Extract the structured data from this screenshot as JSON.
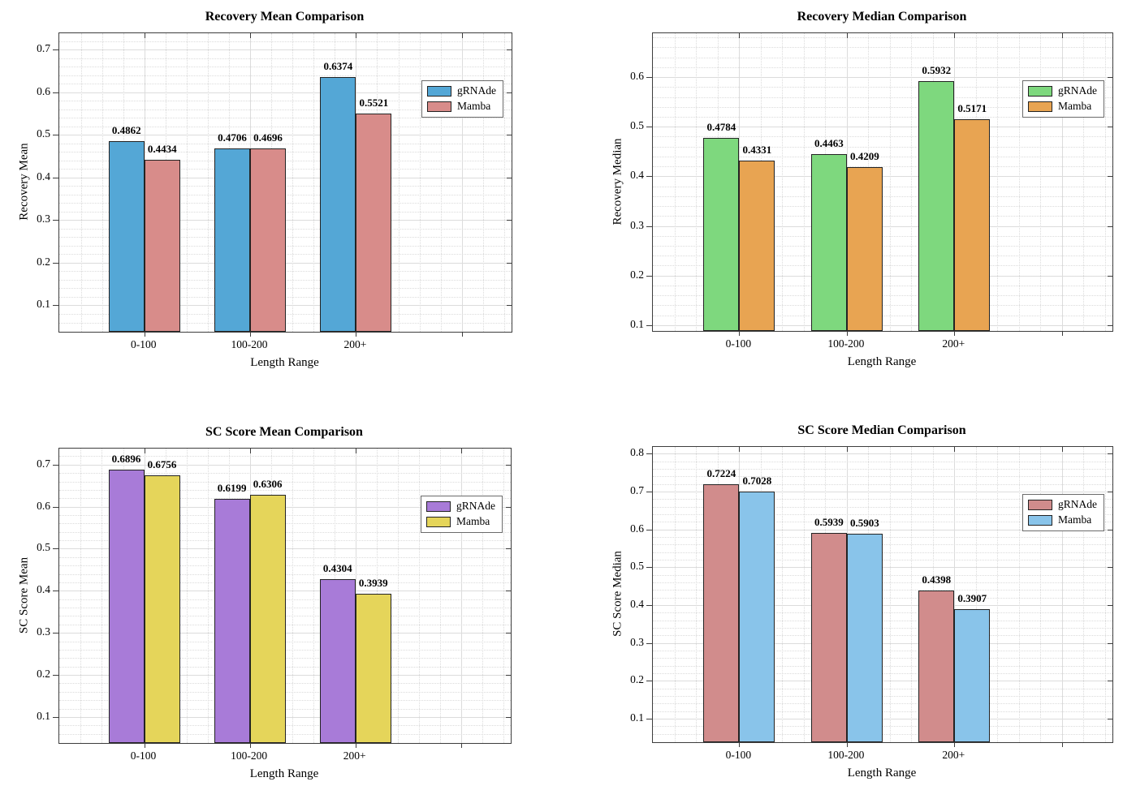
{
  "figure": {
    "background": "#ffffff",
    "bar_edge_color": "#232323",
    "axis_color": "#3d3d3d",
    "grid_major_color": "#dcdcdc",
    "grid_minor_color": "#cfcfcf"
  },
  "chart_data": [
    {
      "type": "bar",
      "title": "Recovery Mean Comparison",
      "xlabel": "Length Range",
      "ylabel": "Recovery Mean",
      "categories": [
        "0-100",
        "100-200",
        "200+"
      ],
      "series": [
        {
          "name": "gRNAde",
          "color": "#54A7D6",
          "values": [
            0.4862,
            0.4706,
            0.6374
          ]
        },
        {
          "name": "Mamba",
          "color": "#D88C8A",
          "values": [
            0.4434,
            0.4696,
            0.5521
          ]
        }
      ],
      "yticks": [
        0.1,
        0.2,
        0.3,
        0.4,
        0.5,
        0.6,
        0.7
      ],
      "ylim": [
        0.04,
        0.74
      ],
      "grid": true,
      "legend_position": "upper-right-inside",
      "value_label_decimals": 4
    },
    {
      "type": "bar",
      "title": "Recovery Median Comparison",
      "xlabel": "Length Range",
      "ylabel": "Recovery Median",
      "categories": [
        "0-100",
        "100-200",
        "200+"
      ],
      "series": [
        {
          "name": "gRNAde",
          "color": "#7ED87E",
          "values": [
            0.4784,
            0.4463,
            0.5932
          ]
        },
        {
          "name": "Mamba",
          "color": "#E8A452",
          "values": [
            0.4331,
            0.4209,
            0.5171
          ]
        }
      ],
      "yticks": [
        0.1,
        0.2,
        0.3,
        0.4,
        0.5,
        0.6
      ],
      "ylim": [
        0.09,
        0.69
      ],
      "grid": true,
      "legend_position": "upper-right-inside",
      "value_label_decimals": 4
    },
    {
      "type": "bar",
      "title": "SC Score Mean Comparison",
      "xlabel": "Length Range",
      "ylabel": "SC Score Mean",
      "categories": [
        "0-100",
        "100-200",
        "200+"
      ],
      "series": [
        {
          "name": "gRNAde",
          "color": "#A87BD8",
          "values": [
            0.6896,
            0.6199,
            0.4304
          ]
        },
        {
          "name": "Mamba",
          "color": "#E5D55A",
          "values": [
            0.6756,
            0.6306,
            0.3939
          ]
        }
      ],
      "yticks": [
        0.1,
        0.2,
        0.3,
        0.4,
        0.5,
        0.6,
        0.7
      ],
      "ylim": [
        0.04,
        0.74
      ],
      "grid": true,
      "legend_position": "upper-right-inside",
      "value_label_decimals": 4
    },
    {
      "type": "bar",
      "title": "SC Score Median Comparison",
      "xlabel": "Length Range",
      "ylabel": "SC Score Median",
      "categories": [
        "0-100",
        "100-200",
        "200+"
      ],
      "series": [
        {
          "name": "gRNAde",
          "color": "#D18C8C",
          "values": [
            0.7224,
            0.5939,
            0.4398
          ]
        },
        {
          "name": "Mamba",
          "color": "#89C4EA",
          "values": [
            0.7028,
            0.5903,
            0.3907
          ]
        }
      ],
      "yticks": [
        0.1,
        0.2,
        0.3,
        0.4,
        0.5,
        0.6,
        0.7,
        0.8
      ],
      "ylim": [
        0.04,
        0.82
      ],
      "grid": true,
      "legend_position": "upper-right-inside",
      "value_label_decimals": 4
    }
  ]
}
